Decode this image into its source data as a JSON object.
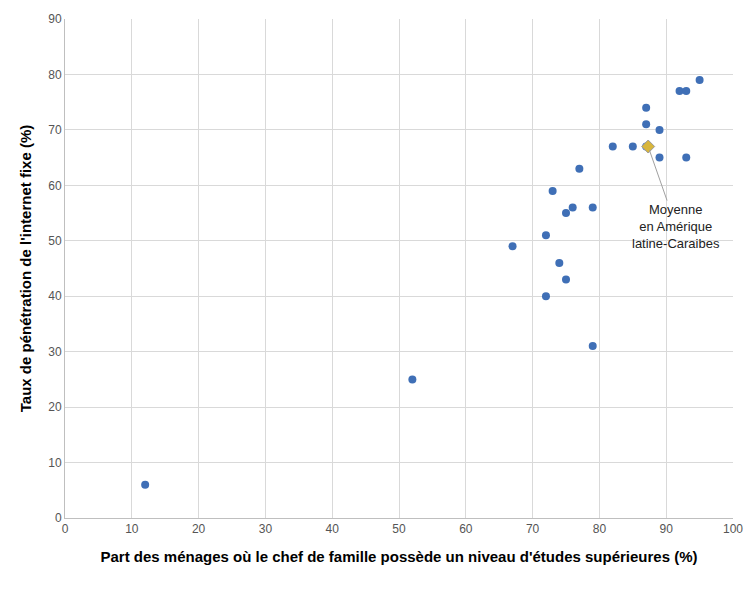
{
  "chart_data": {
    "type": "scatter",
    "xlabel": "Part des ménages où le chef de famille possède un niveau d'études supérieures (%)",
    "ylabel": "Taux de pénétration de l'internet fixe (%)",
    "x": [
      12,
      52,
      67,
      72,
      72,
      73,
      74,
      75,
      75,
      76,
      77,
      79,
      79,
      82,
      85,
      87,
      87,
      87,
      89,
      89,
      92,
      93,
      93,
      95
    ],
    "y": [
      6,
      25,
      49,
      51,
      40,
      59,
      46,
      55,
      43,
      56,
      63,
      56,
      31,
      67,
      67,
      74,
      71,
      67,
      70,
      65,
      77,
      77,
      65,
      79
    ],
    "color": "#3f6fb6",
    "marker": "circle",
    "highlight": {
      "x": 87.3,
      "y": 67,
      "color": "#d8b63c",
      "marker": "diamond"
    },
    "annotations": [
      {
        "lines": [
          "Moyenne",
          "en Amérique",
          "latine-Caraibes"
        ],
        "x": 87.3,
        "y": 67
      }
    ],
    "xlim": [
      0,
      100
    ],
    "xticks": [
      0,
      10,
      20,
      30,
      40,
      50,
      60,
      70,
      80,
      90,
      100
    ],
    "ylim": [
      0,
      90
    ],
    "yticks": [
      0,
      10,
      20,
      30,
      40,
      50,
      60,
      70,
      80,
      90
    ],
    "grid": true
  }
}
